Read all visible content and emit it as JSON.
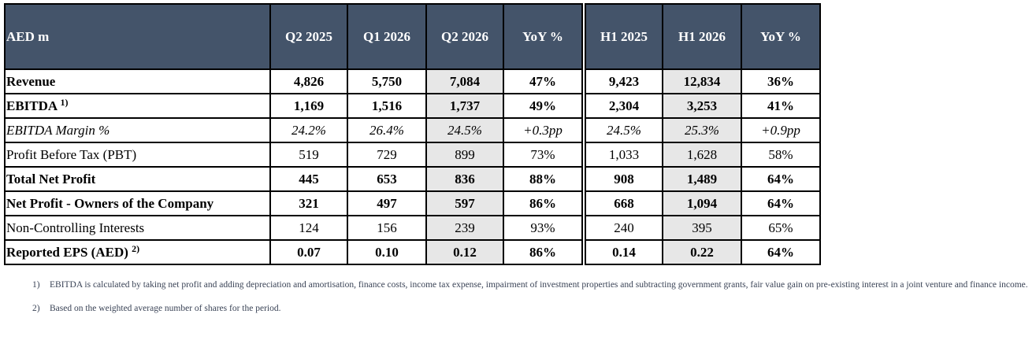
{
  "table": {
    "header": {
      "label": "AED m",
      "columns": [
        "Q2 2025",
        "Q1 2026",
        "Q2 2026",
        "YoY %",
        "H1 2025",
        "H1 2026",
        "YoY %"
      ]
    },
    "rows": [
      {
        "label": "Revenue",
        "sup": "",
        "style": "bold",
        "values": [
          "4,826",
          "5,750",
          "7,084",
          "47%",
          "9,423",
          "12,834",
          "36%"
        ]
      },
      {
        "label": "EBITDA",
        "sup": "1)",
        "style": "bold",
        "values": [
          "1,169",
          "1,516",
          "1,737",
          "49%",
          "2,304",
          "3,253",
          "41%"
        ]
      },
      {
        "label": "EBITDA Margin %",
        "sup": "",
        "style": "italic",
        "values": [
          "24.2%",
          "26.4%",
          "24.5%",
          "+0.3pp",
          "24.5%",
          "25.3%",
          "+0.9pp"
        ]
      },
      {
        "label": "Profit Before Tax (PBT)",
        "sup": "",
        "style": "normal",
        "values": [
          "519",
          "729",
          "899",
          "73%",
          "1,033",
          "1,628",
          "58%"
        ]
      },
      {
        "label": "Total Net Profit",
        "sup": "",
        "style": "bold",
        "values": [
          "445",
          "653",
          "836",
          "88%",
          "908",
          "1,489",
          "64%"
        ]
      },
      {
        "label": "Net Profit - Owners of the Company",
        "sup": "",
        "style": "bold",
        "values": [
          "321",
          "497",
          "597",
          "86%",
          "668",
          "1,094",
          "64%"
        ]
      },
      {
        "label": "Non-Controlling Interests",
        "sup": "",
        "style": "normal",
        "values": [
          "124",
          "156",
          "239",
          "93%",
          "240",
          "395",
          "65%"
        ]
      },
      {
        "label": "Reported EPS (AED)",
        "sup": "2)",
        "style": "bold",
        "values": [
          "0.07",
          "0.10",
          "0.12",
          "86%",
          "0.14",
          "0.22",
          "64%"
        ]
      }
    ],
    "header_color": "#44546a",
    "shade_color": "#e7e7e7"
  },
  "footnotes": [
    {
      "num": "1)",
      "text": "EBITDA is calculated by taking net profit and adding depreciation and amortisation, finance costs, income tax expense, impairment of investment properties and subtracting government grants, fair value gain on pre-existing interest in a joint venture and finance income."
    },
    {
      "num": "2)",
      "text": "Based on the weighted average number of shares for the period."
    }
  ]
}
